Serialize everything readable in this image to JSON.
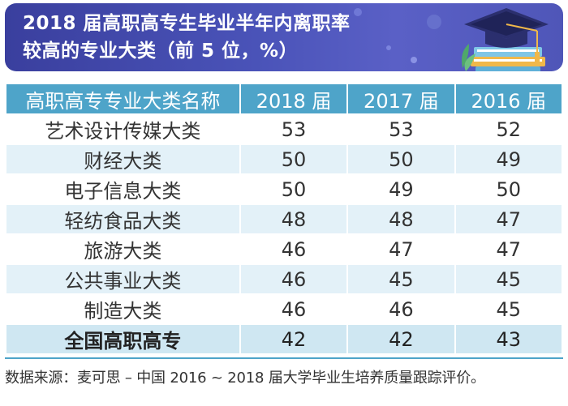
{
  "title": {
    "line1": "2018 届高职高专生毕业半年内离职率",
    "line2": "较高的专业大类（前 5 位，%）"
  },
  "icons": {
    "graduation_cap": "graduation-cap-icon"
  },
  "colors": {
    "banner": "#4a53b8",
    "header": "#4ea4c9",
    "row_alt": "#e3f1f8",
    "total_row": "#cfe7f2"
  },
  "chart_data": {
    "type": "table",
    "columns": [
      "高职高专专业大类名称",
      "2018 届",
      "2017 届",
      "2016 届"
    ],
    "rows": [
      {
        "name": "艺术设计传媒大类",
        "values": [
          "53",
          "53",
          "52"
        ]
      },
      {
        "name": "财经大类",
        "values": [
          "50",
          "50",
          "49"
        ]
      },
      {
        "name": "电子信息大类",
        "values": [
          "50",
          "49",
          "50"
        ]
      },
      {
        "name": "轻纺食品大类",
        "values": [
          "48",
          "48",
          "47"
        ]
      },
      {
        "name": "旅游大类",
        "values": [
          "46",
          "47",
          "47"
        ]
      },
      {
        "name": "公共事业大类",
        "values": [
          "46",
          "45",
          "45"
        ]
      },
      {
        "name": "制造大类",
        "values": [
          "46",
          "46",
          "45"
        ]
      }
    ],
    "total": {
      "name": "全国高职高专",
      "values": [
        "42",
        "42",
        "43"
      ]
    }
  },
  "source": "数据来源：麦可思 – 中国 2016 ~ 2018 届大学毕业生培养质量跟踪评价。"
}
